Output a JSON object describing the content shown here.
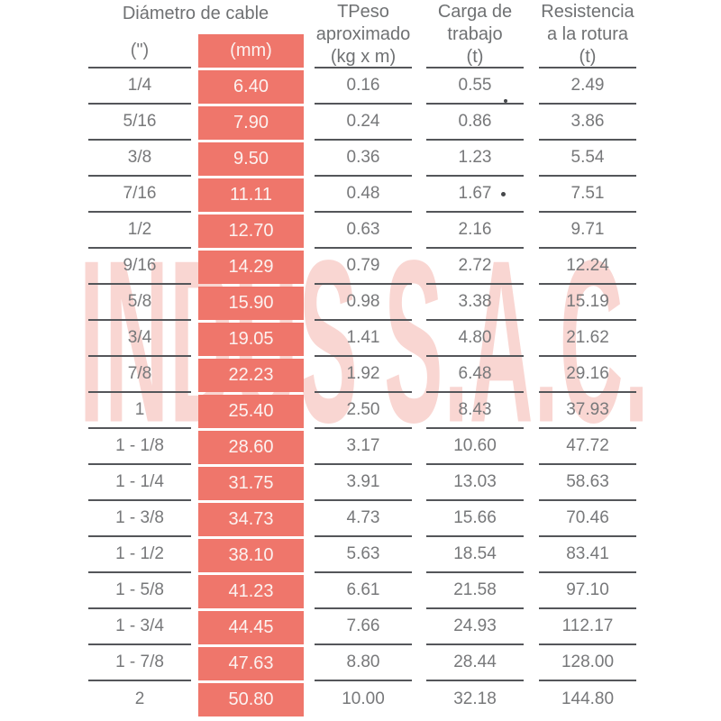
{
  "watermark": {
    "text": "INDUS S.A.C."
  },
  "colors": {
    "accent": "#ef766b",
    "accent_text": "#fcf2f0",
    "text": "#77787a",
    "header_text": "#6f7173",
    "line": "#54565a",
    "watermark": "#f9d6d2",
    "background": "#ffffff"
  },
  "table": {
    "group_header": "Diámetro de cable",
    "headers": {
      "inches": "(\")",
      "mm": "(mm)",
      "peso": "TPeso\naproximado\n(kg x m)",
      "carga": "Carga de\ntrabajo\n(t)",
      "res": "Resistencia\na la rotura\n(t)"
    },
    "columns": [
      {
        "key": "in",
        "container": "col-in",
        "cell_class": "cell",
        "header_key": "inches"
      },
      {
        "key": "mm",
        "container": "col-mm",
        "cell_class": "mm-cell",
        "header_key": "mm"
      },
      {
        "key": "peso",
        "container": "col-peso",
        "cell_class": "cell",
        "header_key": null
      },
      {
        "key": "carga",
        "container": "col-carga",
        "cell_class": "cell",
        "header_key": null
      },
      {
        "key": "res",
        "container": "col-res",
        "cell_class": "cell",
        "header_key": null
      }
    ],
    "rows": [
      {
        "in": "1/4",
        "mm": "6.40",
        "peso": "0.16",
        "carga": "0.55",
        "res": "2.49"
      },
      {
        "in": "5/16",
        "mm": "7.90",
        "peso": "0.24",
        "carga": "0.86",
        "res": "3.86"
      },
      {
        "in": "3/8",
        "mm": "9.50",
        "peso": "0.36",
        "carga": "1.23",
        "res": "5.54"
      },
      {
        "in": "7/16",
        "mm": "11.11",
        "peso": "0.48",
        "carga": "1.67",
        "res": "7.51"
      },
      {
        "in": "1/2",
        "mm": "12.70",
        "peso": "0.63",
        "carga": "2.16",
        "res": "9.71"
      },
      {
        "in": "9/16",
        "mm": "14.29",
        "peso": "0.79",
        "carga": "2.72",
        "res": "12.24"
      },
      {
        "in": "5/8",
        "mm": "15.90",
        "peso": "0.98",
        "carga": "3.38",
        "res": "15.19"
      },
      {
        "in": "3/4",
        "mm": "19.05",
        "peso": "1.41",
        "carga": "4.80",
        "res": "21.62"
      },
      {
        "in": "7/8",
        "mm": "22.23",
        "peso": "1.92",
        "carga": "6.48",
        "res": "29.16"
      },
      {
        "in": "1",
        "mm": "25.40",
        "peso": "2.50",
        "carga": "8.43",
        "res": "37.93"
      },
      {
        "in": "1 - 1/8",
        "mm": "28.60",
        "peso": "3.17",
        "carga": "10.60",
        "res": "47.72"
      },
      {
        "in": "1 - 1/4",
        "mm": "31.75",
        "peso": "3.91",
        "carga": "13.03",
        "res": "58.63"
      },
      {
        "in": "1 - 3/8",
        "mm": "34.73",
        "peso": "4.73",
        "carga": "15.66",
        "res": "70.46"
      },
      {
        "in": "1 - 1/2",
        "mm": "38.10",
        "peso": "5.63",
        "carga": "18.54",
        "res": "83.41"
      },
      {
        "in": "1 - 5/8",
        "mm": "41.23",
        "peso": "6.61",
        "carga": "21.58",
        "res": "97.10"
      },
      {
        "in": "1 - 3/4",
        "mm": "44.45",
        "peso": "7.66",
        "carga": "24.93",
        "res": "112.17"
      },
      {
        "in": "1 - 7/8",
        "mm": "47.63",
        "peso": "8.80",
        "carga": "28.44",
        "res": "128.00"
      },
      {
        "in": "2",
        "mm": "50.80",
        "peso": "10.00",
        "carga": "32.18",
        "res": "144.80"
      }
    ]
  }
}
